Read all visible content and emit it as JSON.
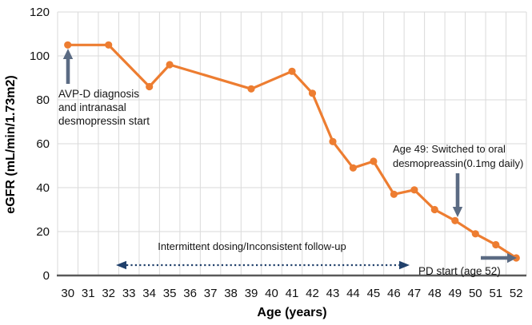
{
  "chart_data": {
    "type": "line",
    "title": "",
    "xlabel": "Age (years)",
    "ylabel": "eGFR (mL/min/1.73m2)",
    "x_categories": [
      "30",
      "31",
      "32",
      "33",
      "34",
      "35",
      "36",
      "37",
      "38",
      "39",
      "40",
      "41",
      "42",
      "43",
      "44",
      "45",
      "46",
      "47",
      "48",
      "49",
      "50",
      "51",
      "52"
    ],
    "yticks": [
      0,
      20,
      40,
      60,
      80,
      100,
      120
    ],
    "ylim": [
      0,
      120
    ],
    "grid": true,
    "legend": "none",
    "series": [
      {
        "color": "#ED7D31",
        "marker": "circle",
        "points": [
          [
            30,
            105
          ],
          [
            32,
            105
          ],
          [
            34,
            86
          ],
          [
            35,
            96
          ],
          [
            39,
            85
          ],
          [
            41,
            93
          ],
          [
            42,
            83
          ],
          [
            43,
            61
          ],
          [
            44,
            49
          ],
          [
            45,
            52
          ],
          [
            46,
            37
          ],
          [
            47,
            39
          ],
          [
            48,
            30
          ],
          [
            49,
            25
          ],
          [
            50,
            19
          ],
          [
            51,
            14
          ],
          [
            52,
            8
          ]
        ]
      }
    ],
    "annotations": [
      {
        "id": "diagnosis",
        "text": "AVP-D diagnosis\nand intranasal\ndesmopressin start",
        "points_to": "age 30 value 105"
      },
      {
        "id": "intermittent",
        "text": "Intermittent dosing/Inconsistent follow-up",
        "span": "ages 33 to 47"
      },
      {
        "id": "age49_switch",
        "text": "Age 49: Switched to oral\ndesmopreassin(0.1mg daily)",
        "points_to": "age 49 value 25"
      },
      {
        "id": "pd_start",
        "text": "PD start (age 52)",
        "points_to": "age 52 value 8"
      }
    ]
  },
  "colors": {
    "line": "#ED7D31",
    "arrow_slate": "#5B6B83",
    "arrow_navy": "#20406B",
    "gridline": "#DADADA",
    "axis": "#595959",
    "text": "#111111"
  }
}
